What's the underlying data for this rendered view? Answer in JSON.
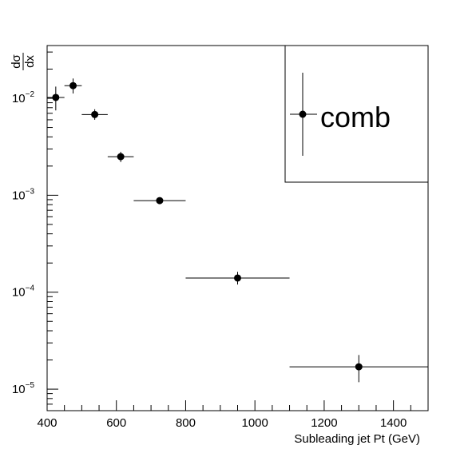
{
  "chart_data": {
    "type": "scatter",
    "xlabel": "Subleading jet Pt (GeV)",
    "ylabel_num": "dσ",
    "ylabel_den": "dx",
    "xlim": [
      400,
      1500
    ],
    "ylim": [
      6e-06,
      0.035
    ],
    "yscale": "log",
    "grid": false,
    "x_ticks": [
      400,
      600,
      800,
      1000,
      1200,
      1400
    ],
    "x_tick_labels": [
      "400",
      "600",
      "800",
      "1000",
      "1200",
      "1400"
    ],
    "y_ticks": [
      1e-05,
      0.0001,
      0.001,
      0.01
    ],
    "y_tick_base": [
      "10",
      "10",
      "10",
      "10"
    ],
    "y_tick_exp": [
      "−5",
      "−4",
      "−3",
      "−2"
    ],
    "legend": {
      "position": "top-right",
      "entries": [
        "comb"
      ]
    },
    "series": [
      {
        "name": "comb",
        "points": [
          {
            "x": 425,
            "xlo": 400,
            "xhi": 450,
            "y": 0.0102,
            "ylo": 0.0075,
            "yhi": 0.0132
          },
          {
            "x": 475,
            "xlo": 450,
            "xhi": 500,
            "y": 0.0135,
            "ylo": 0.0112,
            "yhi": 0.016
          },
          {
            "x": 537.5,
            "xlo": 500,
            "xhi": 575,
            "y": 0.0068,
            "ylo": 0.006,
            "yhi": 0.0077
          },
          {
            "x": 612.5,
            "xlo": 575,
            "xhi": 650,
            "y": 0.0025,
            "ylo": 0.0022,
            "yhi": 0.0028
          },
          {
            "x": 725,
            "xlo": 650,
            "xhi": 800,
            "y": 0.00088,
            "ylo": 0.00082,
            "yhi": 0.00094
          },
          {
            "x": 950,
            "xlo": 800,
            "xhi": 1100,
            "y": 0.00014,
            "ylo": 0.00012,
            "yhi": 0.000162
          },
          {
            "x": 1300,
            "xlo": 1100,
            "xhi": 1500,
            "y": 1.7e-05,
            "ylo": 1.18e-05,
            "yhi": 2.25e-05
          }
        ]
      }
    ]
  }
}
